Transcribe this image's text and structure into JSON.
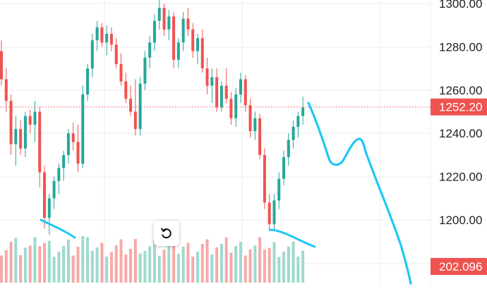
{
  "chart_data": {
    "type": "candlestick",
    "y_ticks": [
      "1300.00",
      "1280.00",
      "1260.00",
      "1240.00",
      "1220.00",
      "1200.00"
    ],
    "ylim": [
      1185,
      1305
    ],
    "last_price": {
      "value": 1252.2,
      "label": "1252.20"
    },
    "volume_label": "202.096",
    "grid": true,
    "up_color": "#26a69a",
    "down_color": "#ef5350",
    "annotation_color": "#1ec8f5",
    "candles": [
      [
        1278,
        1283,
        1262,
        1265
      ],
      [
        1265,
        1270,
        1250,
        1255
      ],
      [
        1255,
        1258,
        1230,
        1235
      ],
      [
        1235,
        1248,
        1225,
        1242
      ],
      [
        1242,
        1246,
        1230,
        1233
      ],
      [
        1233,
        1250,
        1229,
        1248
      ],
      [
        1248,
        1251,
        1240,
        1244
      ],
      [
        1244,
        1255,
        1236,
        1250
      ],
      [
        1250,
        1252,
        1215,
        1222
      ],
      [
        1222,
        1225,
        1196,
        1201
      ],
      [
        1201,
        1212,
        1193,
        1210
      ],
      [
        1210,
        1220,
        1205,
        1218
      ],
      [
        1218,
        1226,
        1212,
        1224
      ],
      [
        1224,
        1232,
        1218,
        1230
      ],
      [
        1230,
        1242,
        1226,
        1240
      ],
      [
        1240,
        1245,
        1232,
        1236
      ],
      [
        1236,
        1244,
        1222,
        1226
      ],
      [
        1226,
        1262,
        1224,
        1258
      ],
      [
        1258,
        1272,
        1255,
        1270
      ],
      [
        1270,
        1286,
        1266,
        1283
      ],
      [
        1283,
        1292,
        1278,
        1289
      ],
      [
        1289,
        1291,
        1280,
        1282
      ],
      [
        1282,
        1290,
        1276,
        1286
      ],
      [
        1286,
        1289,
        1278,
        1281
      ],
      [
        1281,
        1284,
        1270,
        1272
      ],
      [
        1272,
        1277,
        1262,
        1264
      ],
      [
        1264,
        1268,
        1254,
        1256
      ],
      [
        1256,
        1262,
        1248,
        1250
      ],
      [
        1250,
        1265,
        1239,
        1242
      ],
      [
        1242,
        1266,
        1239,
        1263
      ],
      [
        1263,
        1278,
        1260,
        1275
      ],
      [
        1275,
        1285,
        1270,
        1282
      ],
      [
        1282,
        1295,
        1278,
        1292
      ],
      [
        1292,
        1302,
        1288,
        1298
      ],
      [
        1298,
        1300,
        1285,
        1288
      ],
      [
        1288,
        1297,
        1283,
        1294
      ],
      [
        1294,
        1296,
        1270,
        1274
      ],
      [
        1274,
        1284,
        1270,
        1282
      ],
      [
        1282,
        1296,
        1278,
        1293
      ],
      [
        1293,
        1298,
        1285,
        1288
      ],
      [
        1288,
        1291,
        1275,
        1278
      ],
      [
        1278,
        1286,
        1272,
        1284
      ],
      [
        1284,
        1288,
        1268,
        1270
      ],
      [
        1270,
        1275,
        1258,
        1262
      ],
      [
        1262,
        1270,
        1254,
        1266
      ],
      [
        1266,
        1270,
        1250,
        1252
      ],
      [
        1252,
        1264,
        1250,
        1262
      ],
      [
        1262,
        1270,
        1254,
        1256
      ],
      [
        1256,
        1259,
        1244,
        1247
      ],
      [
        1247,
        1261,
        1243,
        1258
      ],
      [
        1258,
        1268,
        1254,
        1265
      ],
      [
        1265,
        1267,
        1250,
        1253
      ],
      [
        1253,
        1256,
        1238,
        1241
      ],
      [
        1241,
        1250,
        1237,
        1247
      ],
      [
        1247,
        1249,
        1228,
        1230
      ],
      [
        1230,
        1233,
        1205,
        1208
      ],
      [
        1208,
        1212,
        1195,
        1198
      ],
      [
        1198,
        1212,
        1195,
        1209
      ],
      [
        1209,
        1222,
        1205,
        1219
      ],
      [
        1219,
        1232,
        1216,
        1229
      ],
      [
        1229,
        1240,
        1225,
        1237
      ],
      [
        1237,
        1246,
        1233,
        1243
      ],
      [
        1243,
        1250,
        1238,
        1248
      ],
      [
        1248,
        1257,
        1244,
        1252
      ]
    ]
  }
}
